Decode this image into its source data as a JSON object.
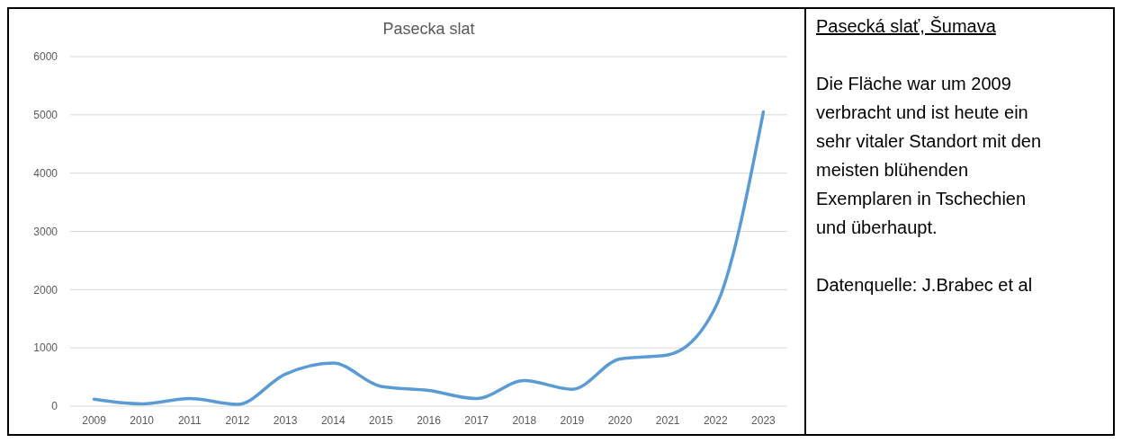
{
  "chart_data": {
    "type": "line",
    "title": "Pasecka slat",
    "categories": [
      "2009",
      "2010",
      "2011",
      "2012",
      "2013",
      "2014",
      "2015",
      "2016",
      "2017",
      "2018",
      "2019",
      "2020",
      "2021",
      "2022",
      "2023"
    ],
    "series": [
      {
        "color": "#5b9bd5",
        "values": [
          120,
          40,
          130,
          30,
          550,
          740,
          340,
          270,
          130,
          440,
          290,
          810,
          880,
          1700,
          5050
        ]
      }
    ],
    "ylim": [
      0,
      6000
    ],
    "yticks": [
      0,
      1000,
      2000,
      3000,
      4000,
      5000,
      6000
    ],
    "grid": "y",
    "marker": "none",
    "line_style": "solid",
    "annotations": [
      "Pasecká slať, Šumava",
      "Die Fläche war um 2009 verbracht und ist heute ein sehr vitaler Standort mit den meisten blühenden Exemplaren in Tschechien und überhaupt.",
      "Datenquelle: J.Brabec et al"
    ]
  }
}
